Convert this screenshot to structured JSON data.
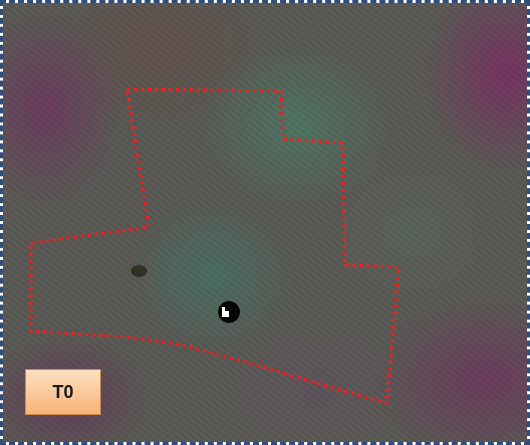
{
  "label": {
    "text": "T0"
  },
  "annotation": {
    "outline_color": "#ff1a1a",
    "frame_color": "#2f4f7a"
  },
  "icons": {
    "marker": "marker-dot-icon"
  }
}
